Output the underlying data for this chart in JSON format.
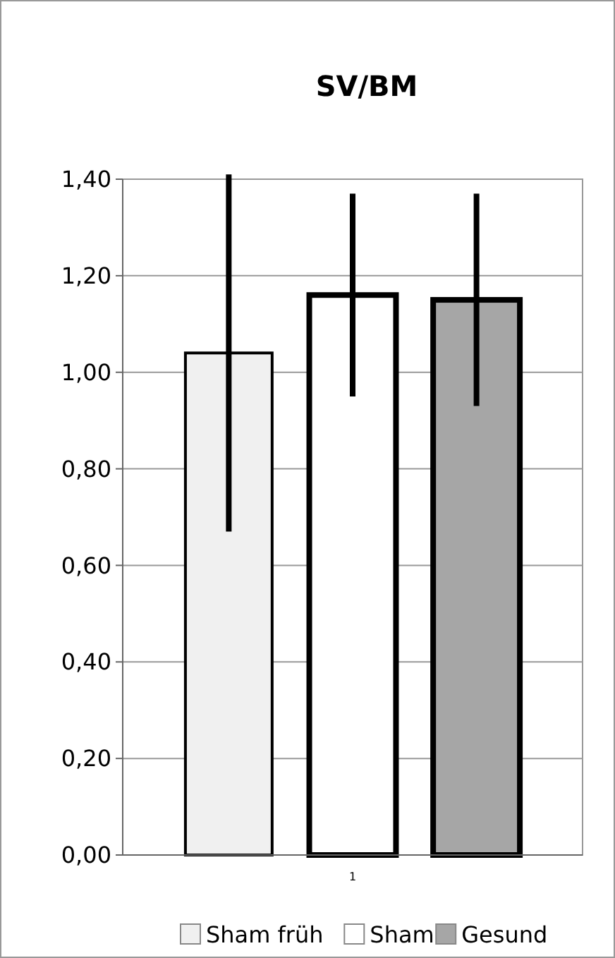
{
  "chart_data": {
    "type": "bar",
    "title": "SV/BM",
    "categories": [
      "1"
    ],
    "series": [
      {
        "name": "Sham früh",
        "color": "#f0f0f0",
        "values": [
          1.04
        ],
        "errors": [
          0.37
        ]
      },
      {
        "name": "Sham",
        "color": "#ffffff",
        "values": [
          1.16
        ],
        "errors": [
          0.21
        ]
      },
      {
        "name": "Gesund",
        "color": "#a6a6a6",
        "values": [
          1.15
        ],
        "errors": [
          0.22
        ]
      }
    ],
    "ylim": [
      0,
      1.4
    ],
    "yticks": [
      {
        "value": 0,
        "label": "0,00"
      },
      {
        "value": 0.2,
        "label": "0,20"
      },
      {
        "value": 0.4,
        "label": "0,40"
      },
      {
        "value": 0.6,
        "label": "0,60"
      },
      {
        "value": 0.8,
        "label": "0,80"
      },
      {
        "value": 1,
        "label": "1,00"
      },
      {
        "value": 1.2,
        "label": "1,20"
      },
      {
        "value": 1.4,
        "label": "1,40"
      }
    ],
    "grid": "y",
    "legend": "bottom"
  }
}
